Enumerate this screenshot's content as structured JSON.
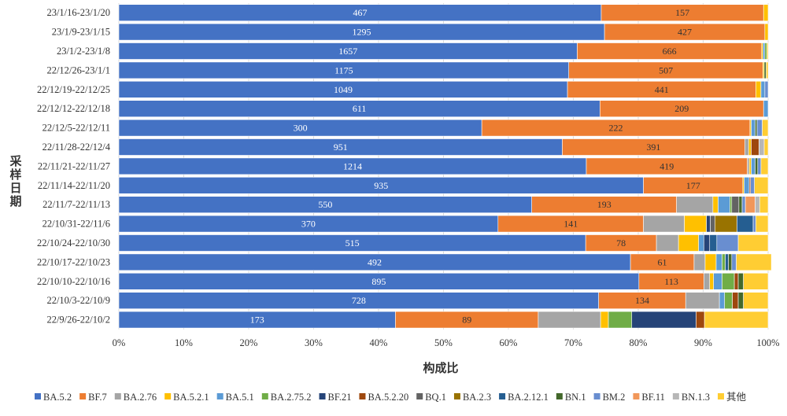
{
  "chart_data": {
    "type": "bar",
    "orientation": "horizontal",
    "stacked": "percent",
    "xlabel": "构成比",
    "ylabel": "采样日期",
    "xlim": [
      0,
      100
    ],
    "xticks": [
      "0%",
      "10%",
      "20%",
      "30%",
      "40%",
      "50%",
      "60%",
      "70%",
      "80%",
      "90%",
      "100%"
    ],
    "legend_position": "bottom",
    "series": [
      {
        "name": "BA.5.2",
        "color": "#4472C4"
      },
      {
        "name": "BF.7",
        "color": "#ED7D31"
      },
      {
        "name": "BA.2.76",
        "color": "#A5A5A5"
      },
      {
        "name": "BA.5.2.1",
        "color": "#FFC000"
      },
      {
        "name": "BA.5.1",
        "color": "#5B9BD5"
      },
      {
        "name": "BA.2.75.2",
        "color": "#70AD47"
      },
      {
        "name": "BF.21",
        "color": "#264478"
      },
      {
        "name": "BA.5.2.20",
        "color": "#9E480E"
      },
      {
        "name": "BQ.1",
        "color": "#636363"
      },
      {
        "name": "BA.2.3",
        "color": "#997300"
      },
      {
        "name": "BA.2.12.1",
        "color": "#255E91"
      },
      {
        "name": "BN.1",
        "color": "#43682B"
      },
      {
        "name": "BM.2",
        "color": "#698ED0"
      },
      {
        "name": "BF.11",
        "color": "#F1975A"
      },
      {
        "name": "BN.1.3",
        "color": "#B7B7B7"
      },
      {
        "name": "其他",
        "color": "#FFCD33"
      }
    ],
    "rows": [
      {
        "category": "23/1/16-23/1/20",
        "labels": [
          "467",
          "157"
        ],
        "percent": [
          74.3,
          25.0,
          0,
          0.7
        ]
      },
      {
        "category": "23/1/9-23/1/15",
        "labels": [
          "1295",
          "427"
        ],
        "percent": [
          74.8,
          24.7,
          0,
          0.5
        ]
      },
      {
        "category": "23/1/2-23/1/8",
        "labels": [
          "1657",
          "666"
        ],
        "percent": [
          70.6,
          28.4,
          0,
          0.2,
          0.3,
          0.3,
          0,
          0,
          0,
          0,
          0,
          0,
          0,
          0,
          0,
          0.2
        ]
      },
      {
        "category": "22/12/26-23/1/1",
        "labels": [
          "1175",
          "507"
        ],
        "percent": [
          69.3,
          29.9,
          0,
          0.2,
          0,
          0,
          0,
          0,
          0,
          0,
          0,
          0.3,
          0,
          0,
          0,
          0.3
        ]
      },
      {
        "category": "22/12/19-22/12/25",
        "labels": [
          "1049",
          "441"
        ],
        "percent": [
          69.1,
          29.0,
          0,
          0.8,
          0.6,
          0,
          0,
          0,
          0,
          0,
          0,
          0,
          0.5
        ]
      },
      {
        "category": "22/12/12-22/12/18",
        "labels": [
          "611",
          "209"
        ],
        "percent": [
          74.1,
          25.2,
          0,
          0,
          0.7
        ]
      },
      {
        "category": "22/12/5-22/12/11",
        "labels": [
          "300",
          "222"
        ],
        "percent": [
          55.9,
          41.3,
          0,
          0.2,
          0.6,
          0,
          0,
          0,
          0,
          0,
          0,
          0.3,
          0.8,
          0,
          0,
          0.9
        ]
      },
      {
        "category": "22/11/28-22/12/4",
        "labels": [
          "951",
          "391"
        ],
        "percent": [
          68.3,
          28.1,
          0.6,
          0.4,
          0,
          0,
          0,
          1.2,
          0,
          0,
          0,
          0,
          0,
          0,
          0.8,
          0.6
        ]
      },
      {
        "category": "22/11/21-22/11/27",
        "labels": [
          "1214",
          "419"
        ],
        "percent": [
          72.0,
          24.8,
          0.3,
          0.3,
          0.6,
          0,
          0,
          0,
          0,
          0,
          0,
          0.4,
          0.5,
          0,
          0,
          1.1
        ]
      },
      {
        "category": "22/11/14-22/11/20",
        "labels": [
          "935",
          "177"
        ],
        "percent": [
          80.8,
          15.3,
          0,
          0.2,
          0.8,
          0,
          0,
          0.2,
          0,
          0,
          0,
          0,
          0.6,
          0,
          0,
          2.1
        ]
      },
      {
        "category": "22/11/7-22/11/13",
        "labels": [
          "550",
          "193"
        ],
        "percent": [
          63.6,
          22.3,
          5.6,
          0.8,
          1.8,
          0.3,
          0,
          0,
          1.1,
          0,
          0,
          0.5,
          0.5,
          1.5,
          0.7,
          1.3
        ]
      },
      {
        "category": "22/10/31-22/11/6",
        "labels": [
          "370",
          "141"
        ],
        "percent": [
          58.4,
          22.4,
          6.3,
          3.4,
          0,
          0,
          0.6,
          0,
          0.7,
          3.4,
          2.5,
          0,
          0.4,
          0,
          0,
          1.9
        ]
      },
      {
        "category": "22/10/24-22/10/30",
        "labels": [
          "515",
          "78"
        ],
        "percent": [
          71.9,
          10.9,
          3.4,
          3.1,
          0.8,
          0,
          0.9,
          0,
          0,
          0,
          1.1,
          0,
          3.3,
          0,
          0,
          4.6
        ]
      },
      {
        "category": "22/10/17-22/10/23",
        "labels": [
          "492",
          "61"
        ],
        "percent": [
          78.8,
          9.8,
          1.7,
          1.7,
          0.9,
          0.5,
          0,
          0,
          0,
          0,
          0.5,
          0.5,
          0.7,
          0,
          0,
          5.4
        ]
      },
      {
        "category": "22/10/10-22/10/16",
        "labels": [
          "895",
          "113"
        ],
        "percent": [
          80.1,
          10.0,
          0.9,
          0.6,
          1.3,
          1.9,
          0,
          0.6,
          0,
          0,
          0,
          0.8,
          0,
          0,
          0,
          3.8
        ]
      },
      {
        "category": "22/10/3-22/10/9",
        "labels": [
          "728",
          "134"
        ],
        "percent": [
          73.9,
          13.4,
          5.2,
          0,
          0.8,
          1.2,
          0,
          0.9,
          0,
          0,
          0,
          0.8,
          0,
          0,
          0,
          3.8
        ]
      },
      {
        "category": "22/9/26-22/10/2",
        "labels": [
          "173",
          "89"
        ],
        "percent": [
          42.6,
          22.0,
          9.6,
          1.2,
          0,
          3.6,
          9.9,
          1.3,
          0,
          0,
          0,
          0,
          0,
          0,
          0,
          9.8
        ]
      }
    ]
  }
}
